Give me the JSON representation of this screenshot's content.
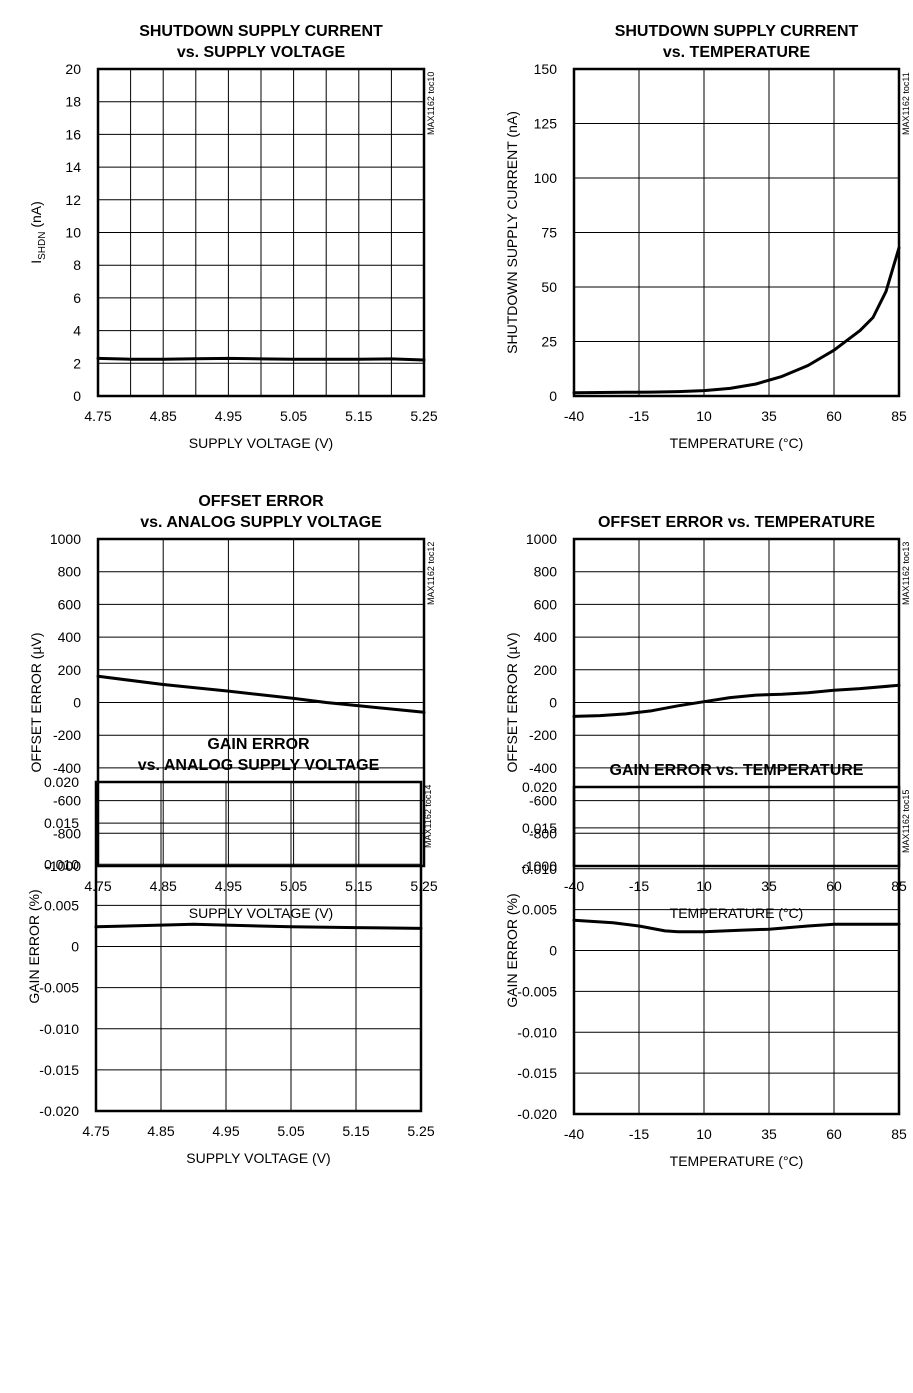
{
  "chart_data": [
    {
      "type": "line",
      "title": [
        "SHUTDOWN SUPPLY CURRENT",
        "vs. SUPPLY VOLTAGE"
      ],
      "tag": "MAX1162 toc10",
      "xlabel": "SUPPLY VOLTAGE (V)",
      "ylabel": "I_SHDN (nA)",
      "xlim": [
        4.75,
        5.25
      ],
      "ylim": [
        0,
        20
      ],
      "x_ticks": [
        4.75,
        4.85,
        4.95,
        5.05,
        5.15,
        5.25
      ],
      "x_tick_labels": [
        "4.75",
        "4.85",
        "4.95",
        "5.05",
        "5.15",
        "5.25"
      ],
      "y_ticks": [
        0,
        2,
        4,
        6,
        8,
        10,
        12,
        14,
        16,
        18,
        20
      ],
      "y_tick_labels": [
        "0",
        "2",
        "4",
        "6",
        "8",
        "10",
        "12",
        "14",
        "16",
        "18",
        "20"
      ],
      "x_grid_divisions": 10,
      "y_grid_divisions": 10,
      "grid": true,
      "series": [
        {
          "x": [
            4.75,
            4.8,
            4.85,
            4.9,
            4.95,
            5.0,
            5.05,
            5.1,
            5.15,
            5.2,
            5.25
          ],
          "y": [
            2.3,
            2.25,
            2.25,
            2.28,
            2.3,
            2.27,
            2.25,
            2.25,
            2.25,
            2.27,
            2.2
          ]
        }
      ]
    },
    {
      "type": "line",
      "title": [
        "SHUTDOWN SUPPLY CURRENT",
        "vs. TEMPERATURE"
      ],
      "tag": "MAX1162 toc11",
      "xlabel": "TEMPERATURE (°C)",
      "ylabel": "SHUTDOWN SUPPLY CURRENT (nA)",
      "xlim": [
        -40,
        85
      ],
      "ylim": [
        0,
        150
      ],
      "x_ticks": [
        -40,
        -15,
        10,
        35,
        60,
        85
      ],
      "x_tick_labels": [
        "-40",
        "-15",
        "10",
        "35",
        "60",
        "85"
      ],
      "y_ticks": [
        0,
        25,
        50,
        75,
        100,
        125,
        150
      ],
      "y_tick_labels": [
        "0",
        "25",
        "50",
        "75",
        "100",
        "125",
        "150"
      ],
      "x_grid_divisions": 5,
      "y_grid_divisions": 6,
      "grid": true,
      "series": [
        {
          "x": [
            -40,
            -30,
            -20,
            -10,
            0,
            10,
            20,
            30,
            40,
            50,
            60,
            70,
            75,
            80,
            85
          ],
          "y": [
            1.5,
            1.6,
            1.7,
            1.8,
            2.0,
            2.5,
            3.5,
            5.5,
            9,
            14,
            21,
            30,
            36,
            48,
            68
          ]
        }
      ]
    },
    {
      "type": "line",
      "title": [
        "OFFSET ERROR",
        "vs. ANALOG SUPPLY VOLTAGE"
      ],
      "tag": "MAX1162 toc12",
      "xlabel": "SUPPLY VOLTAGE (V)",
      "ylabel": "OFFSET ERROR (µV)",
      "xlim": [
        4.75,
        5.25
      ],
      "ylim": [
        -1000,
        1000
      ],
      "x_ticks": [
        4.75,
        4.85,
        4.95,
        5.05,
        5.15,
        5.25
      ],
      "x_tick_labels": [
        "4.75",
        "4.85",
        "4.95",
        "5.05",
        "5.15",
        "5.25"
      ],
      "y_ticks": [
        -1000,
        -800,
        -600,
        -400,
        -200,
        0,
        200,
        400,
        600,
        800,
        1000
      ],
      "y_tick_labels": [
        "-1000",
        "-800",
        "-600",
        "-400",
        "-200",
        "0",
        "200",
        "400",
        "600",
        "800",
        "1000"
      ],
      "x_grid_divisions": 5,
      "y_grid_divisions": 10,
      "grid": true,
      "series": [
        {
          "x": [
            4.75,
            4.85,
            4.95,
            5.05,
            5.1,
            5.15,
            5.25
          ],
          "y": [
            160,
            110,
            70,
            25,
            0,
            -20,
            -60
          ]
        }
      ]
    },
    {
      "type": "line",
      "title": [
        "OFFSET ERROR vs. TEMPERATURE"
      ],
      "tag": "MAX1162 toc13",
      "xlabel": "TEMPERATURE (°C)",
      "ylabel": "OFFSET ERROR (µV)",
      "xlim": [
        -40,
        85
      ],
      "ylim": [
        -1000,
        1000
      ],
      "x_ticks": [
        -40,
        -15,
        10,
        35,
        60,
        85
      ],
      "x_tick_labels": [
        "-40",
        "-15",
        "10",
        "35",
        "60",
        "85"
      ],
      "y_ticks": [
        -1000,
        -800,
        -600,
        -400,
        -200,
        0,
        200,
        400,
        600,
        800,
        1000
      ],
      "y_tick_labels": [
        "-1000",
        "-800",
        "-600",
        "-400",
        "-200",
        "0",
        "200",
        "400",
        "600",
        "800",
        "1000"
      ],
      "x_grid_divisions": 5,
      "y_grid_divisions": 10,
      "grid": true,
      "series": [
        {
          "x": [
            -40,
            -30,
            -20,
            -10,
            0,
            10,
            20,
            30,
            40,
            50,
            60,
            70,
            85
          ],
          "y": [
            -85,
            -80,
            -70,
            -50,
            -20,
            5,
            30,
            45,
            50,
            60,
            75,
            85,
            105
          ]
        }
      ]
    },
    {
      "type": "line",
      "title": [
        "GAIN ERROR",
        "vs. ANALOG SUPPLY VOLTAGE"
      ],
      "tag": "MAX1162 toc14",
      "xlabel": "SUPPLY VOLTAGE (V)",
      "ylabel": "GAIN ERROR (%)",
      "xlim": [
        4.75,
        5.25
      ],
      "ylim": [
        -0.02,
        0.02
      ],
      "x_ticks": [
        4.75,
        4.85,
        4.95,
        5.05,
        5.15,
        5.25
      ],
      "x_tick_labels": [
        "4.75",
        "4.85",
        "4.95",
        "5.05",
        "5.15",
        "5.25"
      ],
      "y_ticks": [
        -0.02,
        -0.015,
        -0.01,
        -0.005,
        0,
        0.005,
        0.01,
        0.015,
        0.02
      ],
      "y_tick_labels": [
        "-0.020",
        "-0.015",
        "-0.010",
        "-0.005",
        "0",
        "0.005",
        "0.010",
        "0.015",
        "0.020"
      ],
      "x_grid_divisions": 5,
      "y_grid_divisions": 8,
      "grid": true,
      "series": [
        {
          "x": [
            4.75,
            4.85,
            4.9,
            4.95,
            5.05,
            5.15,
            5.25
          ],
          "y": [
            0.0024,
            0.0026,
            0.0027,
            0.0026,
            0.0024,
            0.0023,
            0.0022
          ]
        }
      ]
    },
    {
      "type": "line",
      "title": [
        "GAIN ERROR vs. TEMPERATURE"
      ],
      "tag": "MAX1162 toc15",
      "xlabel": "TEMPERATURE (°C)",
      "ylabel": "GAIN ERROR (%)",
      "xlim": [
        -40,
        85
      ],
      "ylim": [
        -0.02,
        0.02
      ],
      "x_ticks": [
        -40,
        -15,
        10,
        35,
        60,
        85
      ],
      "x_tick_labels": [
        "-40",
        "-15",
        "10",
        "35",
        "60",
        "85"
      ],
      "y_ticks": [
        -0.02,
        -0.015,
        -0.01,
        -0.005,
        0,
        0.005,
        0.01,
        0.015,
        0.02
      ],
      "y_tick_labels": [
        "-0.020",
        "-0.015",
        "-0.010",
        "-0.005",
        "0",
        "0.005",
        "0.010",
        "0.015",
        "0.020"
      ],
      "x_grid_divisions": 5,
      "y_grid_divisions": 8,
      "grid": true,
      "series": [
        {
          "x": [
            -40,
            -25,
            -15,
            -5,
            0,
            10,
            25,
            35,
            50,
            60,
            75,
            85
          ],
          "y": [
            0.0037,
            0.0034,
            0.003,
            0.0024,
            0.0023,
            0.0023,
            0.0025,
            0.0026,
            0.003,
            0.0032,
            0.0032,
            0.0032
          ]
        }
      ]
    }
  ]
}
